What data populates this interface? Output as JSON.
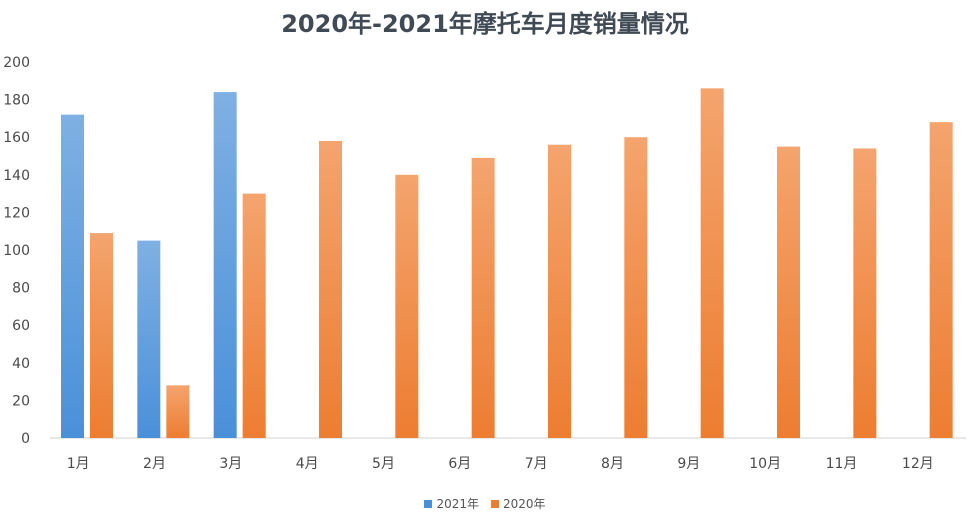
{
  "chart_data": {
    "type": "bar",
    "title": "2020年-2021年摩托车月度销量情况",
    "xlabel": "",
    "ylabel": "",
    "ylim": [
      0,
      200
    ],
    "yticks": [
      0,
      20,
      40,
      60,
      80,
      100,
      120,
      140,
      160,
      180,
      200
    ],
    "categories": [
      "1月",
      "2月",
      "3月",
      "4月",
      "5月",
      "6月",
      "7月",
      "8月",
      "9月",
      "10月",
      "11月",
      "12月"
    ],
    "series": [
      {
        "name": "2021年",
        "color": "#4a90d9",
        "values": [
          172,
          105,
          184,
          null,
          null,
          null,
          null,
          null,
          null,
          null,
          null,
          null
        ]
      },
      {
        "name": "2020年",
        "color": "#ed7d31",
        "values": [
          109,
          28,
          130,
          158,
          140,
          149,
          156,
          160,
          186,
          155,
          154,
          168
        ]
      }
    ],
    "grid": false,
    "legend": "bottom-center"
  }
}
